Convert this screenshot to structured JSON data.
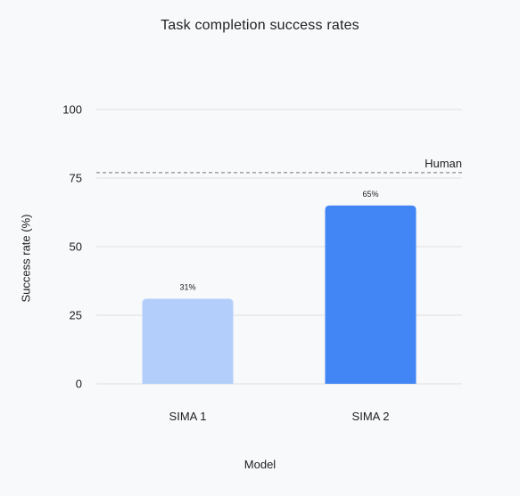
{
  "chart_data": {
    "type": "bar",
    "title": "Task completion success rates",
    "xlabel": "Model",
    "ylabel": "Success rate (%)",
    "categories": [
      "SIMA 1",
      "SIMA 2"
    ],
    "values": [
      31,
      65
    ],
    "data_labels": [
      "31%",
      "65%"
    ],
    "bar_colors": [
      "#b3cefb",
      "#4285f4"
    ],
    "ylim": [
      0,
      100
    ],
    "yticks": [
      0,
      25,
      50,
      75,
      100
    ],
    "grid": true,
    "reference_line": {
      "label": "Human",
      "value": 77,
      "style": "dashed"
    }
  },
  "colors": {
    "background": "#f8f9fa",
    "grid": "#e0e0e0",
    "reference": "#757575"
  }
}
